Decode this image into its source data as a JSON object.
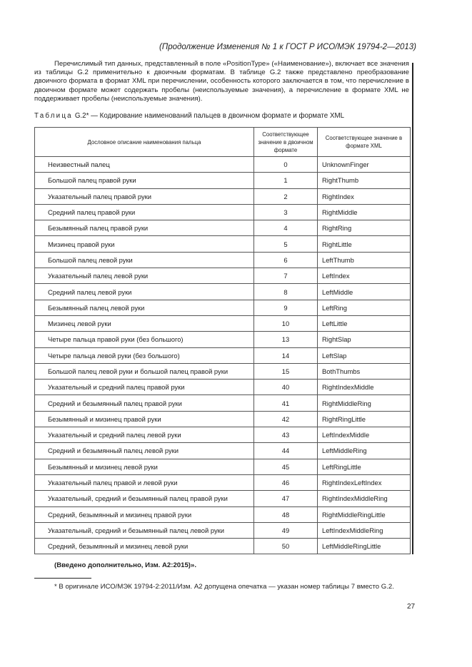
{
  "header": {
    "title": "(Продолжение Изменения № 1 к ГОСТ Р ИСО/МЭК 19794-2—2013)"
  },
  "paragraph": "Перечислимый тип данных, представленный в поле «PositionType» («Наименование»), включает все значения из таблицы G.2 применительно к двоичным форматам. В таблице G.2 также представлено преобразование двоичного формата в формат XML при перечислении, особенность которого заключается в том, что перечисление в двоичном формате может содержать пробелы (неиспользуемые значения), а перечисление в формате XML не поддерживает пробелы (неиспользуемые значения).",
  "caption": {
    "label": "Таблица",
    "text": "G.2* — Кодирование наименований пальцев в двоичном формате и формате XML"
  },
  "table": {
    "columns": [
      "Дословное описание наименования пальца",
      "Соответствующее значение в двоичном формате",
      "Соответствующее значение в формате XML"
    ],
    "rows": [
      [
        "Неизвестный палец",
        "0",
        "UnknownFinger"
      ],
      [
        "Большой палец правой руки",
        "1",
        "RightThumb"
      ],
      [
        "Указательный палец правой руки",
        "2",
        "RightIndex"
      ],
      [
        "Средний палец правой руки",
        "3",
        "RightMiddle"
      ],
      [
        "Безымянный палец правой руки",
        "4",
        "RightRing"
      ],
      [
        "Мизинец правой руки",
        "5",
        "RightLittle"
      ],
      [
        "Большой палец левой руки",
        "6",
        "LeftThumb"
      ],
      [
        "Указательный палец левой руки",
        "7",
        "LeftIndex"
      ],
      [
        "Средний палец левой руки",
        "8",
        "LeftMiddle"
      ],
      [
        "Безымянный палец левой руки",
        "9",
        "LeftRing"
      ],
      [
        "Мизинец левой руки",
        "10",
        "LeftLittle"
      ],
      [
        "Четыре пальца правой руки (без большого)",
        "13",
        "RightSlap"
      ],
      [
        "Четыре пальца левой руки (без большого)",
        "14",
        "LeftSlap"
      ],
      [
        "Большой палец левой руки и большой палец правой руки",
        "15",
        "BothThumbs"
      ],
      [
        "Указательный и средний палец правой руки",
        "40",
        "RightIndexMiddle"
      ],
      [
        "Средний и безымянный палец правой руки",
        "41",
        "RightMiddleRing"
      ],
      [
        "Безымянный и мизинец правой руки",
        "42",
        "RightRingLittle"
      ],
      [
        "Указательный и средний палец левой руки",
        "43",
        "LeftIndexMiddle"
      ],
      [
        "Средний и безымянный палец левой руки",
        "44",
        "LeftMiddleRing"
      ],
      [
        "Безымянный и мизинец левой руки",
        "45",
        "LeftRingLittle"
      ],
      [
        "Указательный палец правой и левой руки",
        "46",
        "RightIndexLeftIndex"
      ],
      [
        "Указательный, средний и безымянный палец правой руки",
        "47",
        "RightIndexMiddleRing"
      ],
      [
        "Средний, безымянный и мизинец правой руки",
        "48",
        "RightMiddleRingLittle"
      ],
      [
        "Указательный, средний и безымянный палец левой руки",
        "49",
        "LeftIndexMiddleRing"
      ],
      [
        "Средний, безымянный и мизинец левой руки",
        "50",
        "LeftMiddleRingLittle"
      ]
    ]
  },
  "note": "(Введено дополнительно, Изм. А2:2015)».",
  "footnote": "* В оригинале ИСО/МЭК 19794-2:2011/Изм. А2 допущена опечатка — указан номер таблицы 7 вместо G.2.",
  "page_number": "27"
}
